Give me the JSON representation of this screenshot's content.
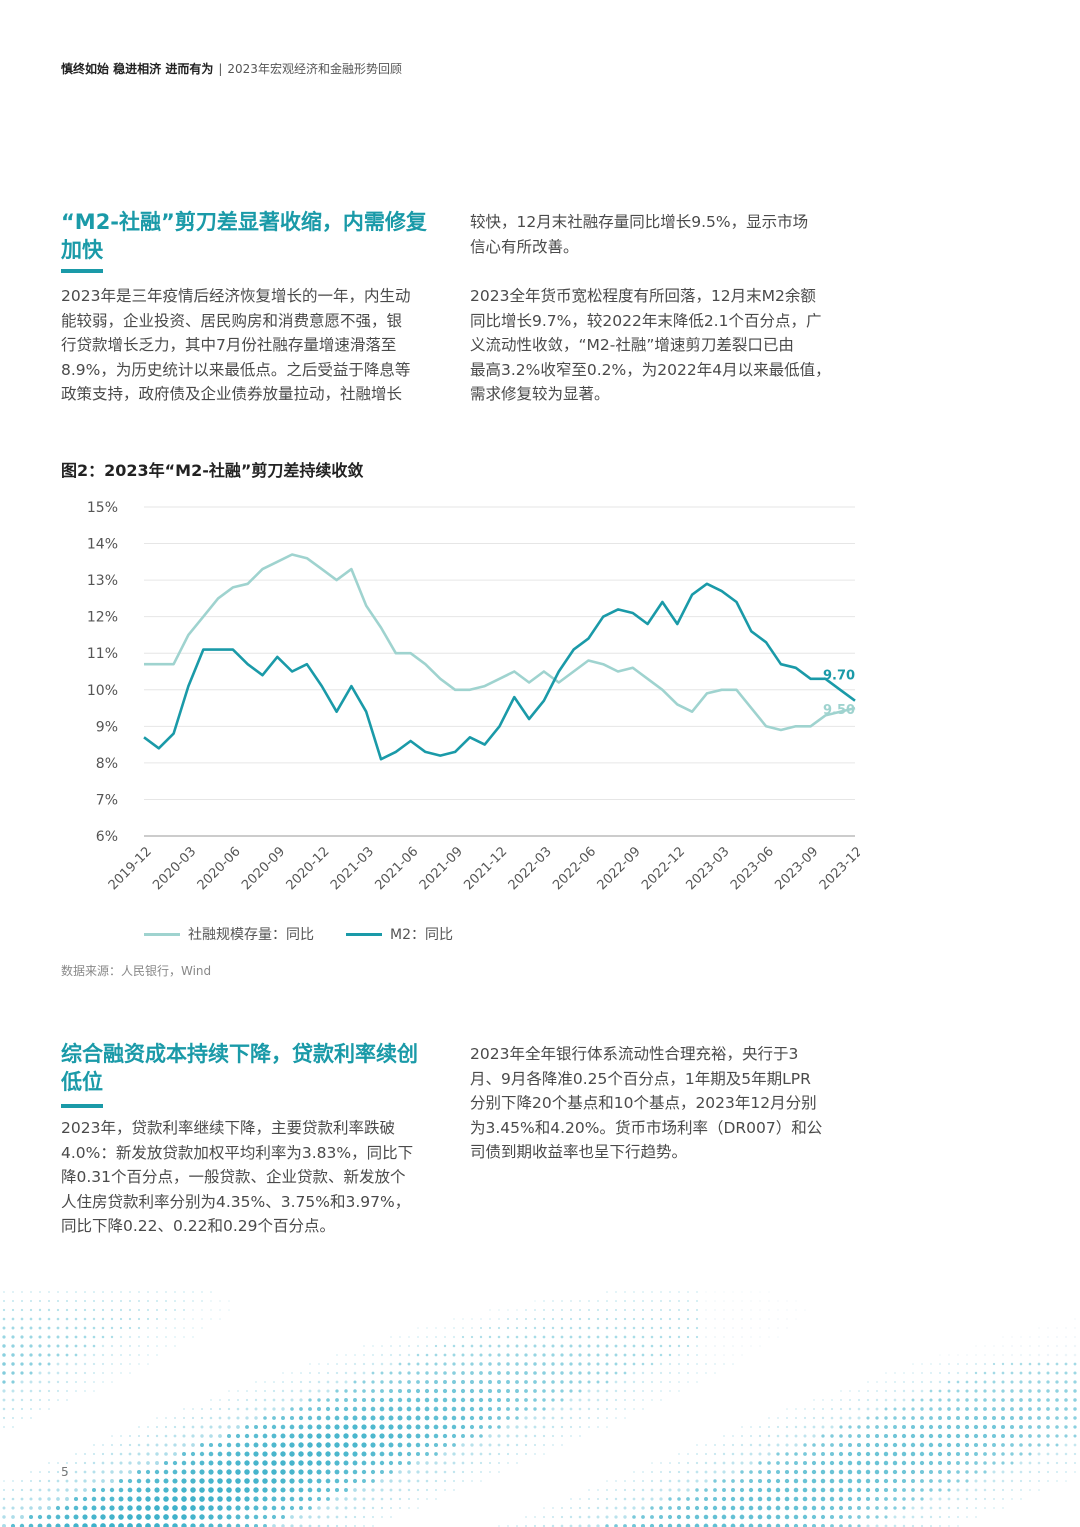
{
  "header": {
    "bold": "慎终如始 稳进相济 进而有为",
    "separator": "|",
    "subtitle": "2023年宏观经济和金融形势回顾"
  },
  "section1": {
    "title_line1": "“M2-社融”剪刀差显著收缩，内需修复",
    "title_line2": "加快",
    "left_lines": [
      "2023年是三年疫情后经济恢复增长的一年，内生动",
      "能较弱，企业投资、居民购房和消费意愿不强，银",
      "行贷款增长乏力，其中7月份社融存量增速滑落至",
      "8.9%，为历史统计以来最低点。之后受益于降息等",
      "政策支持，政府债及企业债券放量拉动，社融增长"
    ],
    "right_lines_top": [
      "较快，12月末社融存量同比增长9.5%，显示市场",
      "信心有所改善。"
    ],
    "right_lines_bottom": [
      "2023全年货币宽松程度有所回落，12月末M2余额",
      "同比增长9.7%，较2022年末降低2.1个百分点，广",
      "义流动性收敛，“M2-社融”增速剪刀差裂口已由",
      "最高3.2%收窄至0.2%，为2022年4月以来最低值，",
      "需求修复较为显著。"
    ]
  },
  "figure": {
    "title": "图2：2023年“M2-社融”剪刀差持续收敛",
    "source": "数据来源：人民银行，Wind"
  },
  "chart_data": {
    "type": "line",
    "ylim": [
      6,
      15
    ],
    "yticks": [
      "6%",
      "7%",
      "8%",
      "9%",
      "10%",
      "11%",
      "12%",
      "13%",
      "14%",
      "15%"
    ],
    "xtick_labels": [
      "2019-12",
      "2020-03",
      "2020-06",
      "2020-09",
      "2020-12",
      "2021-03",
      "2021-06",
      "2021-09",
      "2021-12",
      "2022-03",
      "2022-06",
      "2022-09",
      "2022-12",
      "2023-03",
      "2023-06",
      "2023-09",
      "2023-12"
    ],
    "grid": true,
    "legend_position": "bottom-left",
    "series": [
      {
        "name": "社融规模存量：同比",
        "color": "#9fd3cf",
        "end_label": "9.50",
        "values": [
          10.7,
          10.7,
          10.7,
          11.5,
          12.0,
          12.5,
          12.8,
          12.9,
          13.3,
          13.5,
          13.7,
          13.6,
          13.3,
          13.0,
          13.3,
          12.3,
          11.7,
          11.0,
          11.0,
          10.7,
          10.3,
          10.0,
          10.0,
          10.1,
          10.3,
          10.5,
          10.2,
          10.5,
          10.2,
          10.5,
          10.8,
          10.7,
          10.5,
          10.6,
          10.3,
          10.0,
          9.6,
          9.4,
          9.9,
          10.0,
          10.0,
          9.5,
          9.0,
          8.9,
          9.0,
          9.0,
          9.3,
          9.4,
          9.5
        ]
      },
      {
        "name": "M2：同比",
        "color": "#1a9aa8",
        "end_label": "9.70",
        "values": [
          8.7,
          8.4,
          8.8,
          10.1,
          11.1,
          11.1,
          11.1,
          10.7,
          10.4,
          10.9,
          10.5,
          10.7,
          10.1,
          9.4,
          10.1,
          9.4,
          8.1,
          8.3,
          8.6,
          8.3,
          8.2,
          8.3,
          8.7,
          8.5,
          9.0,
          9.8,
          9.2,
          9.7,
          10.5,
          11.1,
          11.4,
          12.0,
          12.2,
          12.1,
          11.8,
          12.4,
          11.8,
          12.6,
          12.9,
          12.7,
          12.4,
          11.6,
          11.3,
          10.7,
          10.6,
          10.3,
          10.3,
          10.0,
          9.7
        ]
      }
    ]
  },
  "section2": {
    "title_line1": "综合融资成本持续下降，贷款利率续创",
    "title_line2": "低位",
    "left_lines": [
      "2023年，贷款利率继续下降，主要贷款利率跌破",
      "4.0%：新发放贷款加权平均利率为3.83%，同比下",
      "降0.31个百分点，一般贷款、企业贷款、新发放个",
      "人住房贷款利率分别为4.35%、3.75%和3.97%，",
      "同比下降0.22、0.22和0.29个百分点。"
    ],
    "right_lines": [
      "2023年全年银行体系流动性合理充裕，央行于3",
      "月、9月各降准0.25个百分点，1年期及5年期LPR",
      "分别下降20个基点和10个基点，2023年12月分别",
      "为3.45%和4.20%。货币市场利率（DR007）和公",
      "司债到期收益率也呈下行趋势。"
    ]
  },
  "page_number": "5"
}
